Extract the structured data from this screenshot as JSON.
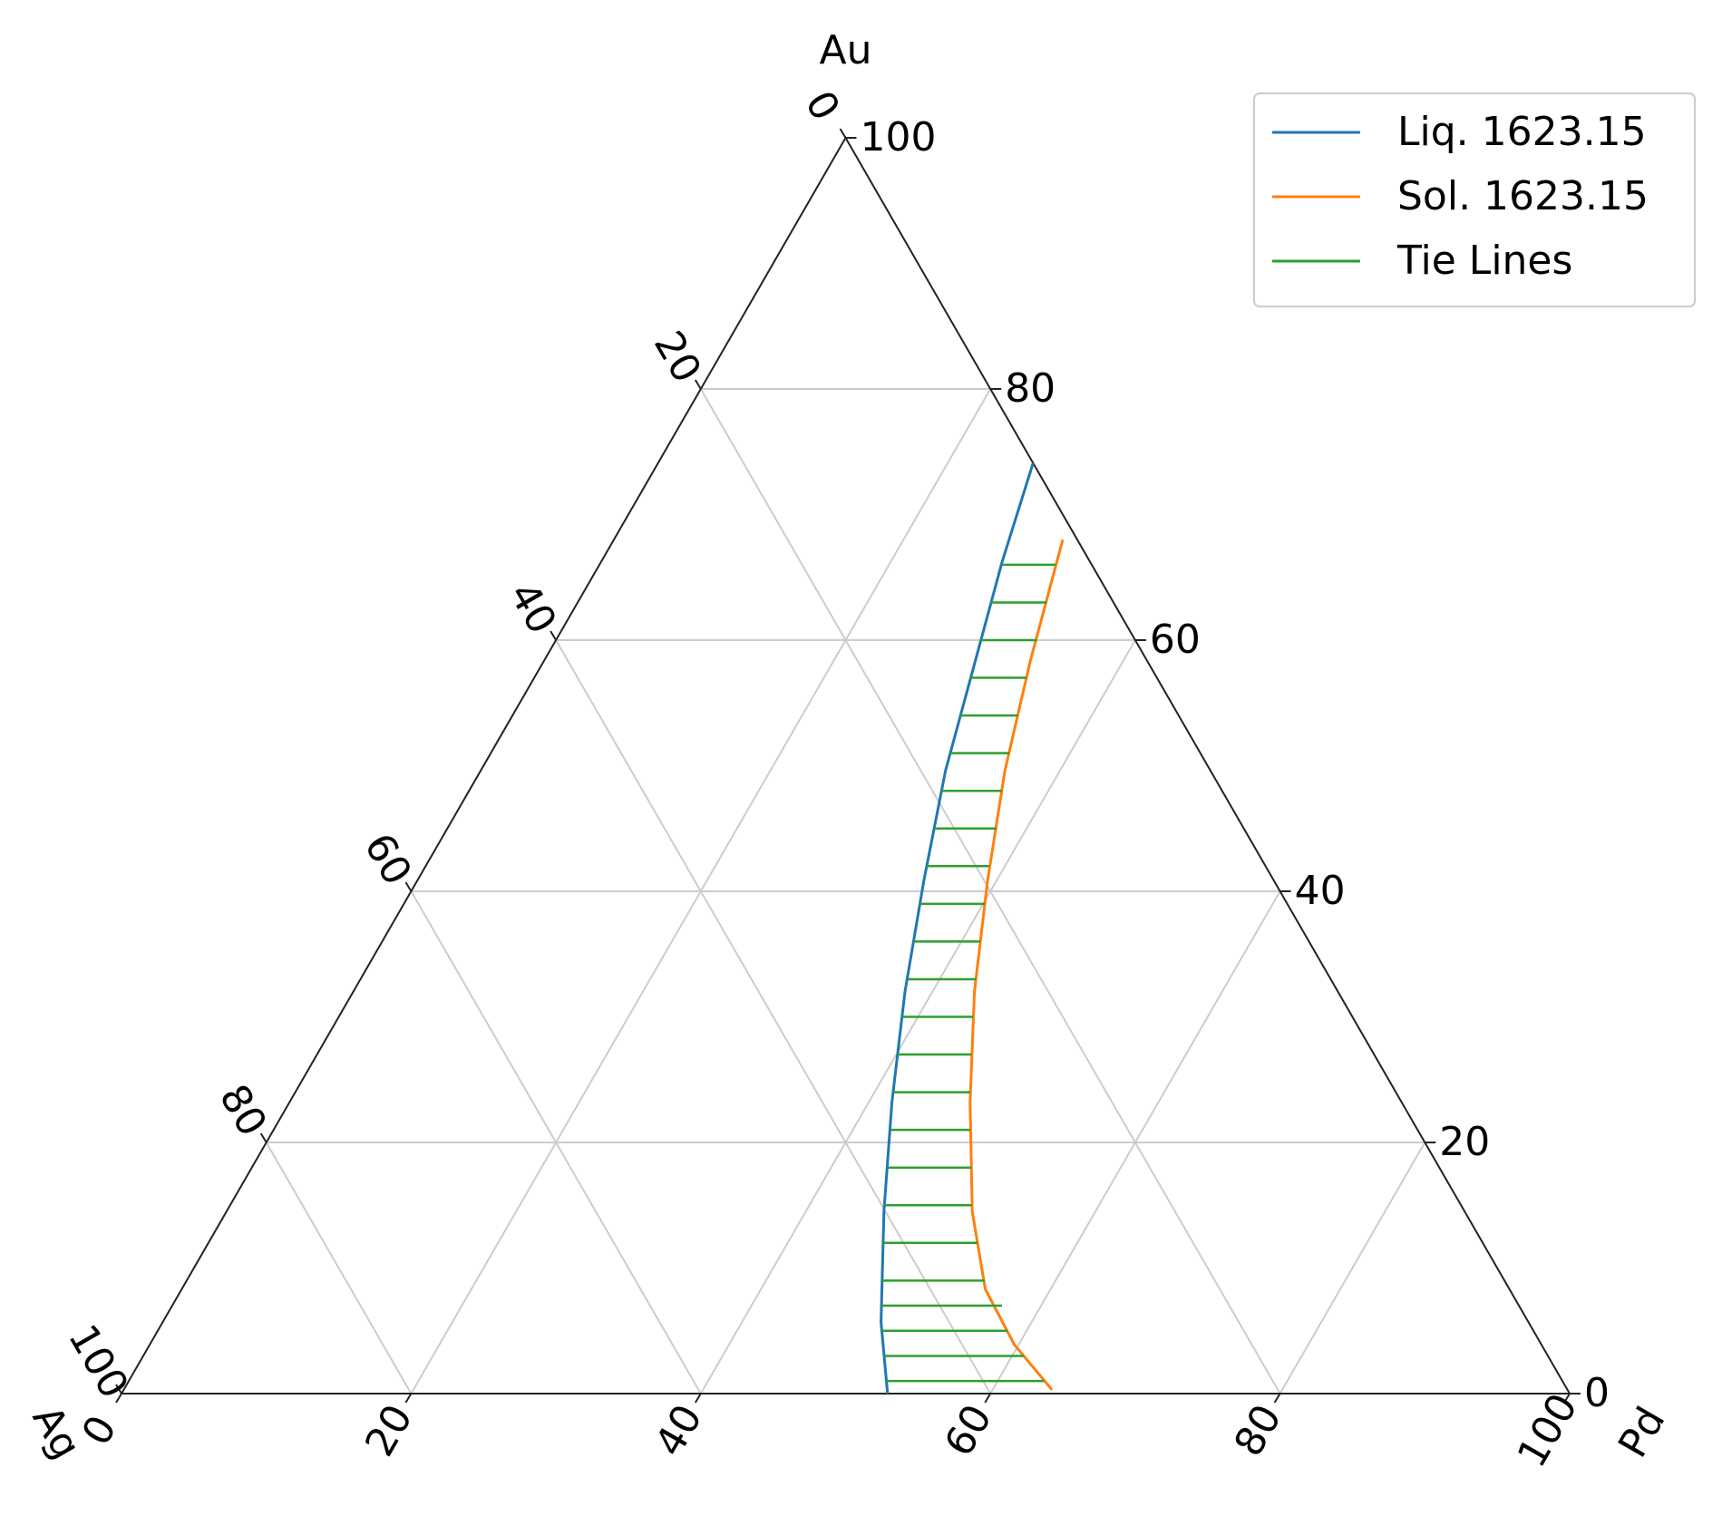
{
  "chart_data": {
    "type": "ternary",
    "axes": {
      "bottom": {
        "label": "Pd",
        "ticks": [
          0,
          20,
          40,
          60,
          80,
          100
        ]
      },
      "right": {
        "label": "Au",
        "ticks": [
          0,
          20,
          40,
          60,
          80,
          100
        ]
      },
      "left": {
        "label": "Ag",
        "ticks": [
          0,
          20,
          40,
          60,
          80,
          100
        ]
      }
    },
    "grid": true,
    "legend": "upper right",
    "series": [
      {
        "name": "Liq. 1623.15",
        "color": "#1f77b4",
        "au": [
          0,
          5.7,
          14.5,
          23.2,
          32,
          40.8,
          49.6,
          58.3,
          66.2,
          74.1
        ],
        "pd": [
          52.9,
          49.6,
          45.4,
          41.6,
          38.1,
          35.0,
          32.1,
          29.8,
          27.7,
          25.9
        ]
      },
      {
        "name": "Sol. 1623.15",
        "color": "#ff7f0e",
        "au": [
          0.3,
          3.9,
          8.3,
          14.5,
          23.2,
          32,
          40.8,
          49.6,
          58.3,
          68
        ],
        "pd": [
          64.1,
          59.7,
          55.5,
          51.5,
          47.0,
          42.9,
          39.4,
          36.2,
          33.6,
          31.0
        ]
      },
      {
        "name": "Tie Lines",
        "color": "#2ca02c",
        "au": [
          1,
          3,
          5,
          7,
          9,
          12,
          15,
          18,
          21,
          24,
          27,
          30,
          33,
          36,
          39,
          42,
          45,
          48,
          51,
          54,
          57,
          60,
          63,
          66
        ],
        "pd_liquid": [
          52.3,
          51.2,
          50.0,
          49.0,
          48.0,
          46.6,
          45.2,
          43.9,
          42.6,
          41.3,
          40.1,
          38.9,
          37.8,
          36.7,
          35.6,
          34.6,
          33.6,
          32.6,
          31.7,
          30.9,
          30.1,
          29.3,
          28.5,
          27.8
        ],
        "pd_solid": [
          63.2,
          60.8,
          58.7,
          57.3,
          55.1,
          53.1,
          51.2,
          49.7,
          48.1,
          46.6,
          45.2,
          43.8,
          42.5,
          41.3,
          40.1,
          38.9,
          37.9,
          36.8,
          35.8,
          34.9,
          34.0,
          33.2,
          32.4,
          31.5
        ]
      }
    ]
  }
}
